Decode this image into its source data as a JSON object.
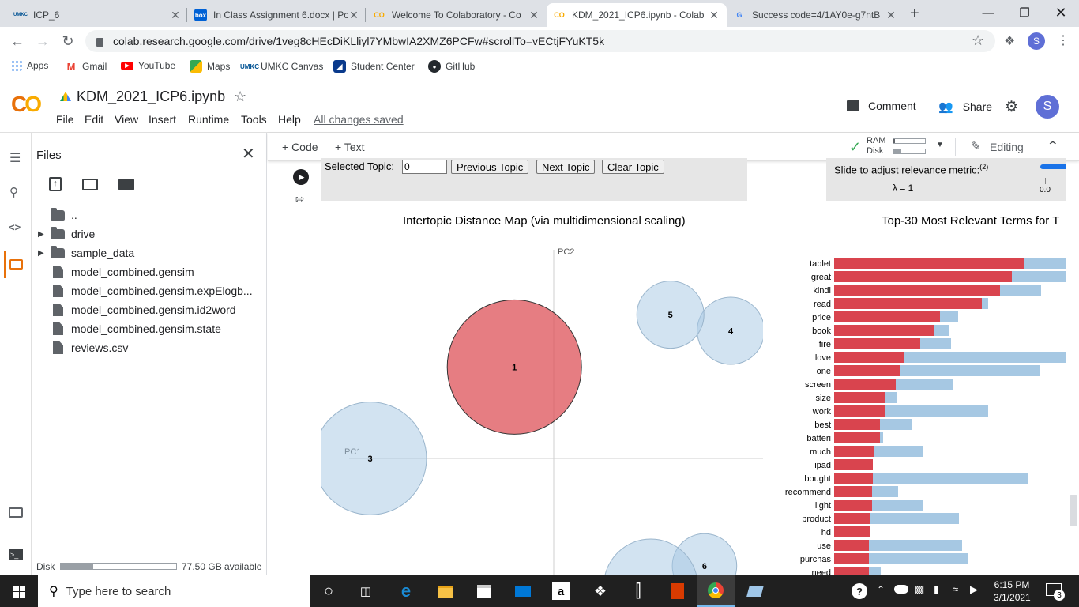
{
  "tabs": [
    {
      "title": "ICP_6",
      "favicon": "UMKC",
      "color": "#005293",
      "active": false
    },
    {
      "title": "In Class Assignment 6.docx | Po",
      "favicon": "box",
      "color": "#0061d5",
      "active": false
    },
    {
      "title": "Welcome To Colaboratory - Co",
      "favicon": "CO",
      "color": "#f9ab00",
      "active": false
    },
    {
      "title": "KDM_2021_ICP6.ipynb - Colab",
      "favicon": "CO",
      "color": "#f9ab00",
      "active": true
    },
    {
      "title": "Success code=4/1AY0e-g7ntB",
      "favicon": "G",
      "color": "#4285f4",
      "active": false
    }
  ],
  "browser": {
    "url": "colab.research.google.com/drive/1veg8cHEcDiKLliyl7YMbwIA2XMZ6PCFw#scrollTo=vECtjFYuKT5k",
    "profile": "S"
  },
  "bookmarks": [
    {
      "label": "Apps",
      "icon": "apps-icon"
    },
    {
      "label": "Gmail",
      "icon": "gmail-icon"
    },
    {
      "label": "YouTube",
      "icon": "youtube-icon"
    },
    {
      "label": "Maps",
      "icon": "maps-icon"
    },
    {
      "label": "UMKC Canvas",
      "icon": "umkc-icon"
    },
    {
      "label": "Student Center",
      "icon": "student-center-icon"
    },
    {
      "label": "GitHub",
      "icon": "github-icon"
    }
  ],
  "colab": {
    "notebook_title": "KDM_2021_ICP6.ipynb",
    "menu": [
      "File",
      "Edit",
      "View",
      "Insert",
      "Runtime",
      "Tools",
      "Help"
    ],
    "save_status": "All changes saved",
    "comment_label": "Comment",
    "share_label": "Share",
    "avatar": "S",
    "add_code": "+ Code",
    "add_text": "+ Text",
    "ram_label": "RAM",
    "disk_label": "Disk",
    "editing_label": "Editing"
  },
  "files_panel": {
    "title": "Files",
    "items": [
      {
        "name": "..",
        "type": "up"
      },
      {
        "name": "drive",
        "type": "folder"
      },
      {
        "name": "sample_data",
        "type": "folder"
      },
      {
        "name": "model_combined.gensim",
        "type": "file"
      },
      {
        "name": "model_combined.gensim.expElogb...",
        "type": "file"
      },
      {
        "name": "model_combined.gensim.id2word",
        "type": "file"
      },
      {
        "name": "model_combined.gensim.state",
        "type": "file"
      },
      {
        "name": "reviews.csv",
        "type": "file"
      }
    ],
    "disk_label": "Disk",
    "disk_available": "77.50 GB available",
    "disk_used_fraction": 0.28
  },
  "ldavis": {
    "selected_topic_label": "Selected Topic:",
    "selected_topic_value": "0",
    "prev_label": "Previous Topic",
    "next_label": "Next Topic",
    "clear_label": "Clear Topic",
    "slider_label": "Slide to adjust relevance metric:",
    "slider_sup": "(2)",
    "lambda_text": "λ = 1",
    "slider_tick": "0.0",
    "map_title": "Intertopic Distance Map (via multidimensional scaling)",
    "bar_title": "Top-30 Most Relevant Terms for T",
    "pc1_label": "PC1",
    "pc2_label": "PC2"
  },
  "chart_data": [
    {
      "type": "scatter",
      "title": "Intertopic Distance Map (via multidimensional scaling)",
      "xlabel": "PC1",
      "ylabel": "PC2",
      "xlim": [
        -0.3,
        0.3
      ],
      "ylim": [
        -0.3,
        0.3
      ],
      "points": [
        {
          "topic": "1",
          "x": -0.06,
          "y": 0.136,
          "size": 1.0,
          "selected": true
        },
        {
          "topic": "3",
          "x": -0.28,
          "y": 0.0,
          "size": 0.84
        },
        {
          "topic": "4",
          "x": 0.27,
          "y": 0.19,
          "size": 0.5
        },
        {
          "topic": "5",
          "x": 0.178,
          "y": 0.214,
          "size": 0.5
        },
        {
          "topic": "6",
          "x": 0.23,
          "y": -0.16,
          "size": 0.48
        },
        {
          "topic": "7",
          "x": 0.148,
          "y": -0.19,
          "size": 0.7
        }
      ]
    },
    {
      "type": "bar",
      "title": "Top-30 Most Relevant Terms for T",
      "categories": [
        "tablet",
        "great",
        "kindl",
        "read",
        "price",
        "book",
        "fire",
        "love",
        "one",
        "screen",
        "size",
        "work",
        "best",
        "batteri",
        "much",
        "ipad",
        "bought",
        "recommend",
        "light",
        "product",
        "hd",
        "use",
        "purchas",
        "need"
      ],
      "series": [
        {
          "name": "Estimated term frequency within the selected topic",
          "color": "#d9444e",
          "values": [
            240,
            225,
            210,
            187,
            134,
            126,
            109,
            88,
            83,
            78,
            65,
            65,
            58,
            58,
            51,
            49,
            49,
            48,
            48,
            46,
            45,
            44,
            44,
            44
          ]
        },
        {
          "name": "Overall term frequency",
          "color": "#a6c8e3",
          "values": [
            300,
            300,
            262,
            195,
            157,
            146,
            148,
            300,
            260,
            150,
            80,
            195,
            98,
            62,
            113,
            49,
            245,
            81,
            113,
            158,
            45,
            162,
            170,
            59
          ]
        }
      ]
    }
  ],
  "taskbar": {
    "search_placeholder": "Type here to search",
    "time": "6:15 PM",
    "date": "3/1/2021",
    "notifications": "3"
  }
}
